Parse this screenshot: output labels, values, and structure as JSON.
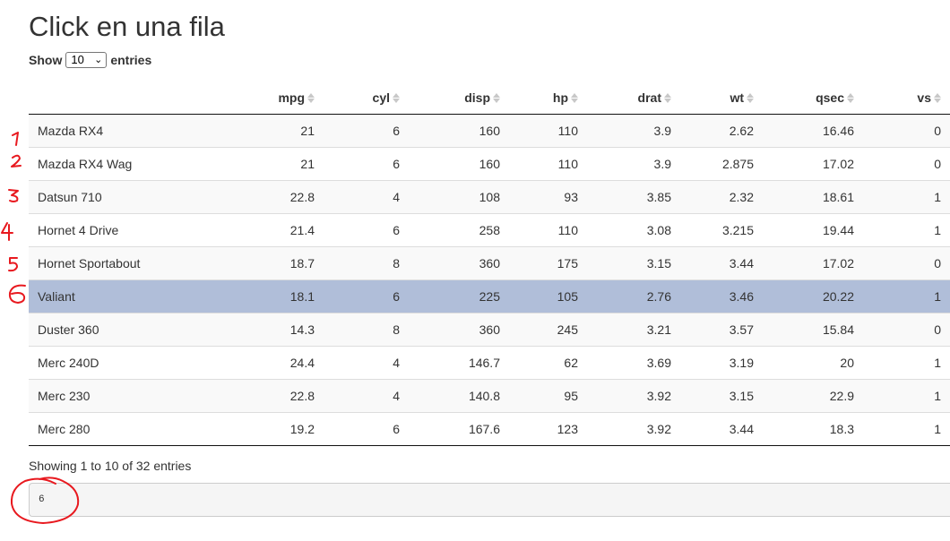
{
  "page": {
    "title": "Click en una fila"
  },
  "length_control": {
    "prefix": "Show",
    "selected": "10",
    "suffix": "entries"
  },
  "table": {
    "columns": [
      "",
      "mpg",
      "cyl",
      "disp",
      "hp",
      "drat",
      "wt",
      "qsec",
      "vs"
    ],
    "rows": [
      [
        "Mazda RX4",
        "21",
        "6",
        "160",
        "110",
        "3.9",
        "2.62",
        "16.46",
        "0"
      ],
      [
        "Mazda RX4 Wag",
        "21",
        "6",
        "160",
        "110",
        "3.9",
        "2.875",
        "17.02",
        "0"
      ],
      [
        "Datsun 710",
        "22.8",
        "4",
        "108",
        "93",
        "3.85",
        "2.32",
        "18.61",
        "1"
      ],
      [
        "Hornet 4 Drive",
        "21.4",
        "6",
        "258",
        "110",
        "3.08",
        "3.215",
        "19.44",
        "1"
      ],
      [
        "Hornet Sportabout",
        "18.7",
        "8",
        "360",
        "175",
        "3.15",
        "3.44",
        "17.02",
        "0"
      ],
      [
        "Valiant",
        "18.1",
        "6",
        "225",
        "105",
        "2.76",
        "3.46",
        "20.22",
        "1"
      ],
      [
        "Duster 360",
        "14.3",
        "8",
        "360",
        "245",
        "3.21",
        "3.57",
        "15.84",
        "0"
      ],
      [
        "Merc 240D",
        "24.4",
        "4",
        "146.7",
        "62",
        "3.69",
        "3.19",
        "20",
        "1"
      ],
      [
        "Merc 230",
        "22.8",
        "4",
        "140.8",
        "95",
        "3.92",
        "3.15",
        "22.9",
        "1"
      ],
      [
        "Merc 280",
        "19.2",
        "6",
        "167.6",
        "123",
        "3.92",
        "3.44",
        "18.3",
        "1"
      ]
    ],
    "selected_row_index": 5
  },
  "info": {
    "text": "Showing 1 to 10 of 32 entries"
  },
  "output": {
    "value": "6"
  },
  "annotations": {
    "row_numbers": [
      "1",
      "2",
      "3",
      "4",
      "5",
      "6"
    ],
    "color": "#e8191f"
  },
  "colors": {
    "selected_row": "#b0bed9",
    "stripe": "#f9f9f9"
  }
}
